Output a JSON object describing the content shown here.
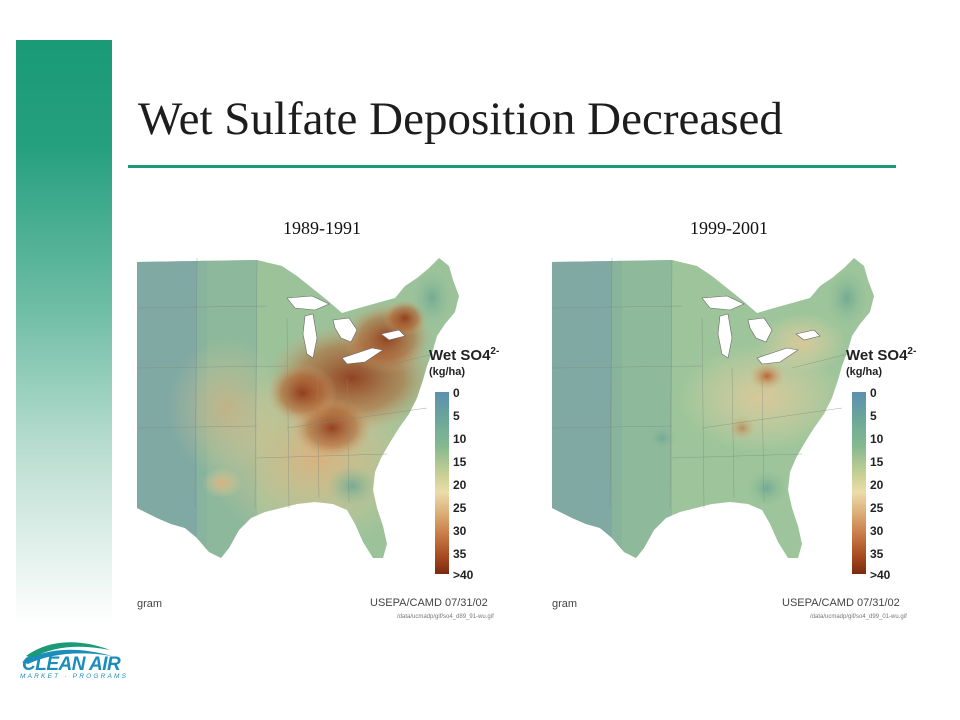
{
  "slide": {
    "title": "Wet Sulfate Deposition Decreased"
  },
  "colors": {
    "accent": "#1a9a77",
    "logo_blue": "#1a8dbb"
  },
  "maps": [
    {
      "period": "1989-1991",
      "legend_title": "Wet SO4",
      "legend_superscript": "2-",
      "legend_unit": "(kg/ha)",
      "legend_ticks": [
        "0",
        "5",
        "10",
        "15",
        "20",
        "25",
        "30",
        "35",
        ">40"
      ],
      "credit": "USEPA/CAMD 07/31/02",
      "credit_left": "gram",
      "credit_path": "/data/ucmadp/gif/so4_d89_91-wu.gif"
    },
    {
      "period": "1999-2001",
      "legend_title": "Wet SO4",
      "legend_superscript": "2-",
      "legend_unit": "(kg/ha)",
      "legend_ticks": [
        "0",
        "5",
        "10",
        "15",
        "20",
        "25",
        "30",
        "35",
        ">40"
      ],
      "credit": "USEPA/CAMD 07/31/02",
      "credit_left": "gram",
      "credit_path": "/data/ucmadp/gif/so4_d99_01-wu.gif"
    }
  ],
  "logo": {
    "name": "CLEAN AIR",
    "tagline": "MARKET · PROGRAMS"
  }
}
